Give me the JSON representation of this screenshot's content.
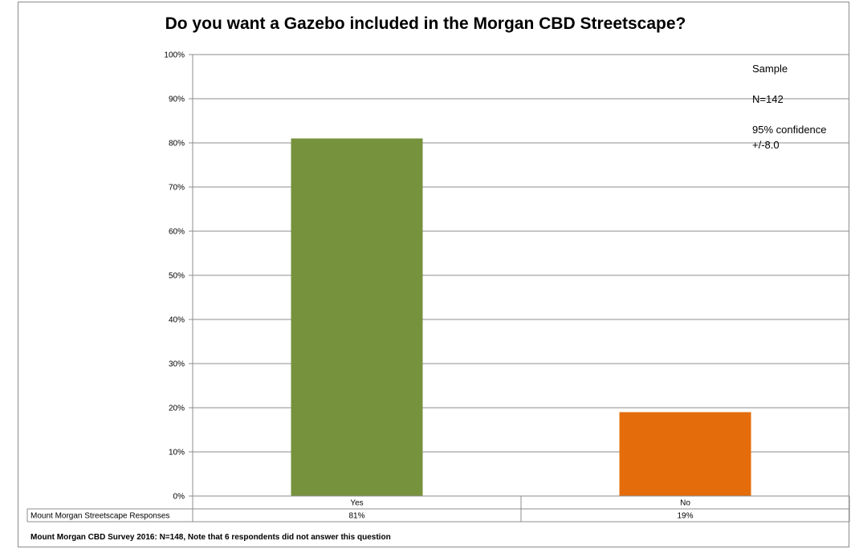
{
  "chart_data": {
    "type": "bar",
    "title": "Do you want a Gazebo included in the Morgan CBD Streetscape?",
    "categories": [
      "Yes",
      "No"
    ],
    "series": [
      {
        "name": "Mount Morgan Streetscape Responses",
        "values": [
          81,
          19
        ],
        "labels": [
          "81%",
          "19%"
        ]
      }
    ],
    "bar_colors": [
      "#76923c",
      "#e46c0a"
    ],
    "ylim": [
      0,
      100
    ],
    "yticks": [
      "0%",
      "10%",
      "20%",
      "30%",
      "40%",
      "50%",
      "60%",
      "70%",
      "80%",
      "90%",
      "100%"
    ],
    "grid": true,
    "data_table": true,
    "annotations": [
      "Sample",
      "N=142",
      "95% confidence",
      "+/-8.0"
    ],
    "footnote": "Mount Morgan CBD Survey 2016: N=148, Note that 6 respondents did not answer this question"
  }
}
